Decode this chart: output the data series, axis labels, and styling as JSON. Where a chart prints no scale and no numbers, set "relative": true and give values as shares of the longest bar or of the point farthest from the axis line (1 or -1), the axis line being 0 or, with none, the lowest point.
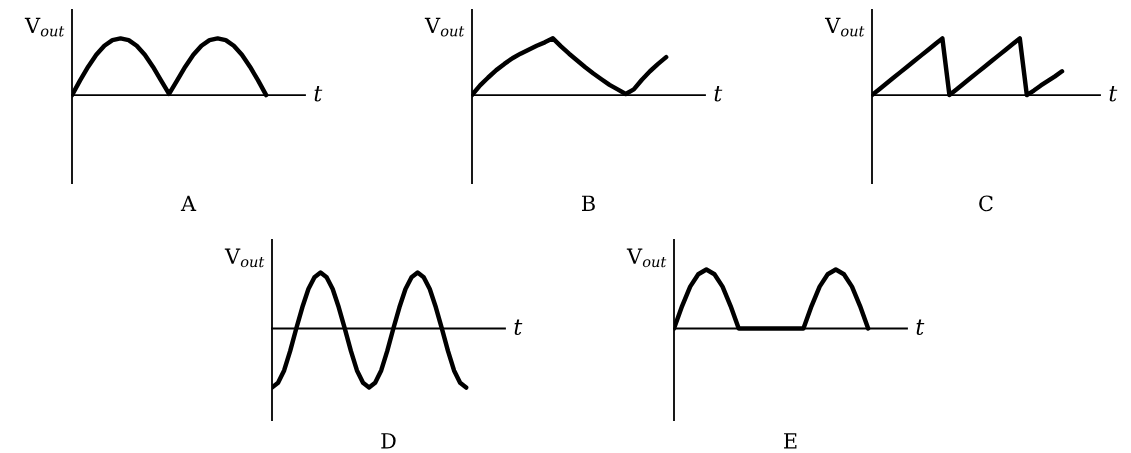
{
  "chart_data": [
    {
      "type": "line",
      "relative": true,
      "tick_labels": false,
      "title": "A",
      "xlabel": "t",
      "ylabel": "V$_{out}$",
      "categories": [
        null,
        null,
        null,
        null,
        null,
        null,
        null,
        null,
        null,
        null,
        null,
        null,
        null,
        null,
        null,
        null,
        null,
        null,
        null,
        null,
        null,
        null,
        null,
        null,
        null
      ],
      "series": [
        {
          "color": "#000000",
          "values": [
            0,
            0.26,
            0.5,
            0.71,
            0.87,
            0.97,
            1,
            0.97,
            0.87,
            0.71,
            0.5,
            0.26,
            0.02,
            0.26,
            0.5,
            0.71,
            0.87,
            0.97,
            1,
            0.97,
            0.87,
            0.71,
            0.5,
            0.26,
            0
          ]
        }
      ]
    },
    {
      "type": "line",
      "relative": true,
      "tick_labels": false,
      "title": "B",
      "xlabel": "t",
      "ylabel": "V$_{out}$",
      "categories": [
        null,
        null,
        null,
        null,
        null,
        null,
        null,
        null,
        null,
        null,
        null,
        null,
        null,
        null,
        null,
        null,
        null,
        null,
        null,
        null,
        null,
        null,
        null,
        null,
        null
      ],
      "series": [
        {
          "color": "#000000",
          "values": [
            0,
            0.17,
            0.31,
            0.44,
            0.55,
            0.65,
            0.73,
            0.8,
            0.87,
            0.93,
            1,
            0.86,
            0.73,
            0.61,
            0.49,
            0.38,
            0.28,
            0.18,
            0.1,
            0.02,
            0.1,
            0.27,
            0.42,
            0.55,
            0.67
          ]
        }
      ]
    },
    {
      "type": "line",
      "relative": true,
      "tick_labels": false,
      "title": "C",
      "xlabel": "t",
      "ylabel": "V$_{out}$",
      "categories": [
        null,
        null,
        null,
        null,
        null,
        null,
        null,
        null,
        null,
        null,
        null,
        null,
        null,
        null,
        null,
        null,
        null,
        null,
        null,
        null,
        null,
        null,
        null,
        null,
        null,
        null,
        null,
        null
      ],
      "series": [
        {
          "color": "#000000",
          "values": [
            0,
            0.1,
            0.2,
            0.3,
            0.4,
            0.5,
            0.6,
            0.7,
            0.8,
            0.9,
            1,
            0,
            0.1,
            0.2,
            0.3,
            0.4,
            0.5,
            0.6,
            0.7,
            0.8,
            0.9,
            1,
            0,
            0.08,
            0.17,
            0.25,
            0.33,
            0.42
          ]
        }
      ]
    },
    {
      "type": "line",
      "relative": true,
      "tick_labels": false,
      "title": "D",
      "xlabel": "t",
      "ylabel": "V$_{out}$",
      "categories": [
        null,
        null,
        null,
        null,
        null,
        null,
        null,
        null,
        null,
        null,
        null,
        null,
        null,
        null,
        null,
        null,
        null,
        null,
        null,
        null,
        null,
        null,
        null,
        null,
        null,
        null,
        null,
        null,
        null,
        null,
        null,
        null,
        null
      ],
      "series": [
        {
          "color": "#000000",
          "values": [
            -1,
            -0.92,
            -0.71,
            -0.38,
            0,
            0.36,
            0.67,
            0.87,
            0.95,
            0.87,
            0.67,
            0.36,
            0,
            -0.38,
            -0.71,
            -0.92,
            -1,
            -0.92,
            -0.71,
            -0.38,
            0,
            0.36,
            0.67,
            0.87,
            0.95,
            0.87,
            0.67,
            0.36,
            0,
            -0.38,
            -0.71,
            -0.92,
            -1
          ]
        }
      ]
    },
    {
      "type": "line",
      "relative": true,
      "tick_labels": false,
      "title": "E",
      "xlabel": "t",
      "ylabel": "V$_{out}$",
      "categories": [
        null,
        null,
        null,
        null,
        null,
        null,
        null,
        null,
        null,
        null,
        null,
        null,
        null,
        null,
        null,
        null,
        null,
        null,
        null,
        null,
        null,
        null,
        null,
        null,
        null
      ],
      "series": [
        {
          "color": "#000000",
          "values": [
            0,
            0.38,
            0.71,
            0.92,
            1,
            0.92,
            0.71,
            0.38,
            0,
            0,
            0,
            0,
            0,
            0,
            0,
            0,
            0,
            0.38,
            0.71,
            0.92,
            1,
            0.92,
            0.71,
            0.38,
            0
          ]
        }
      ]
    }
  ]
}
